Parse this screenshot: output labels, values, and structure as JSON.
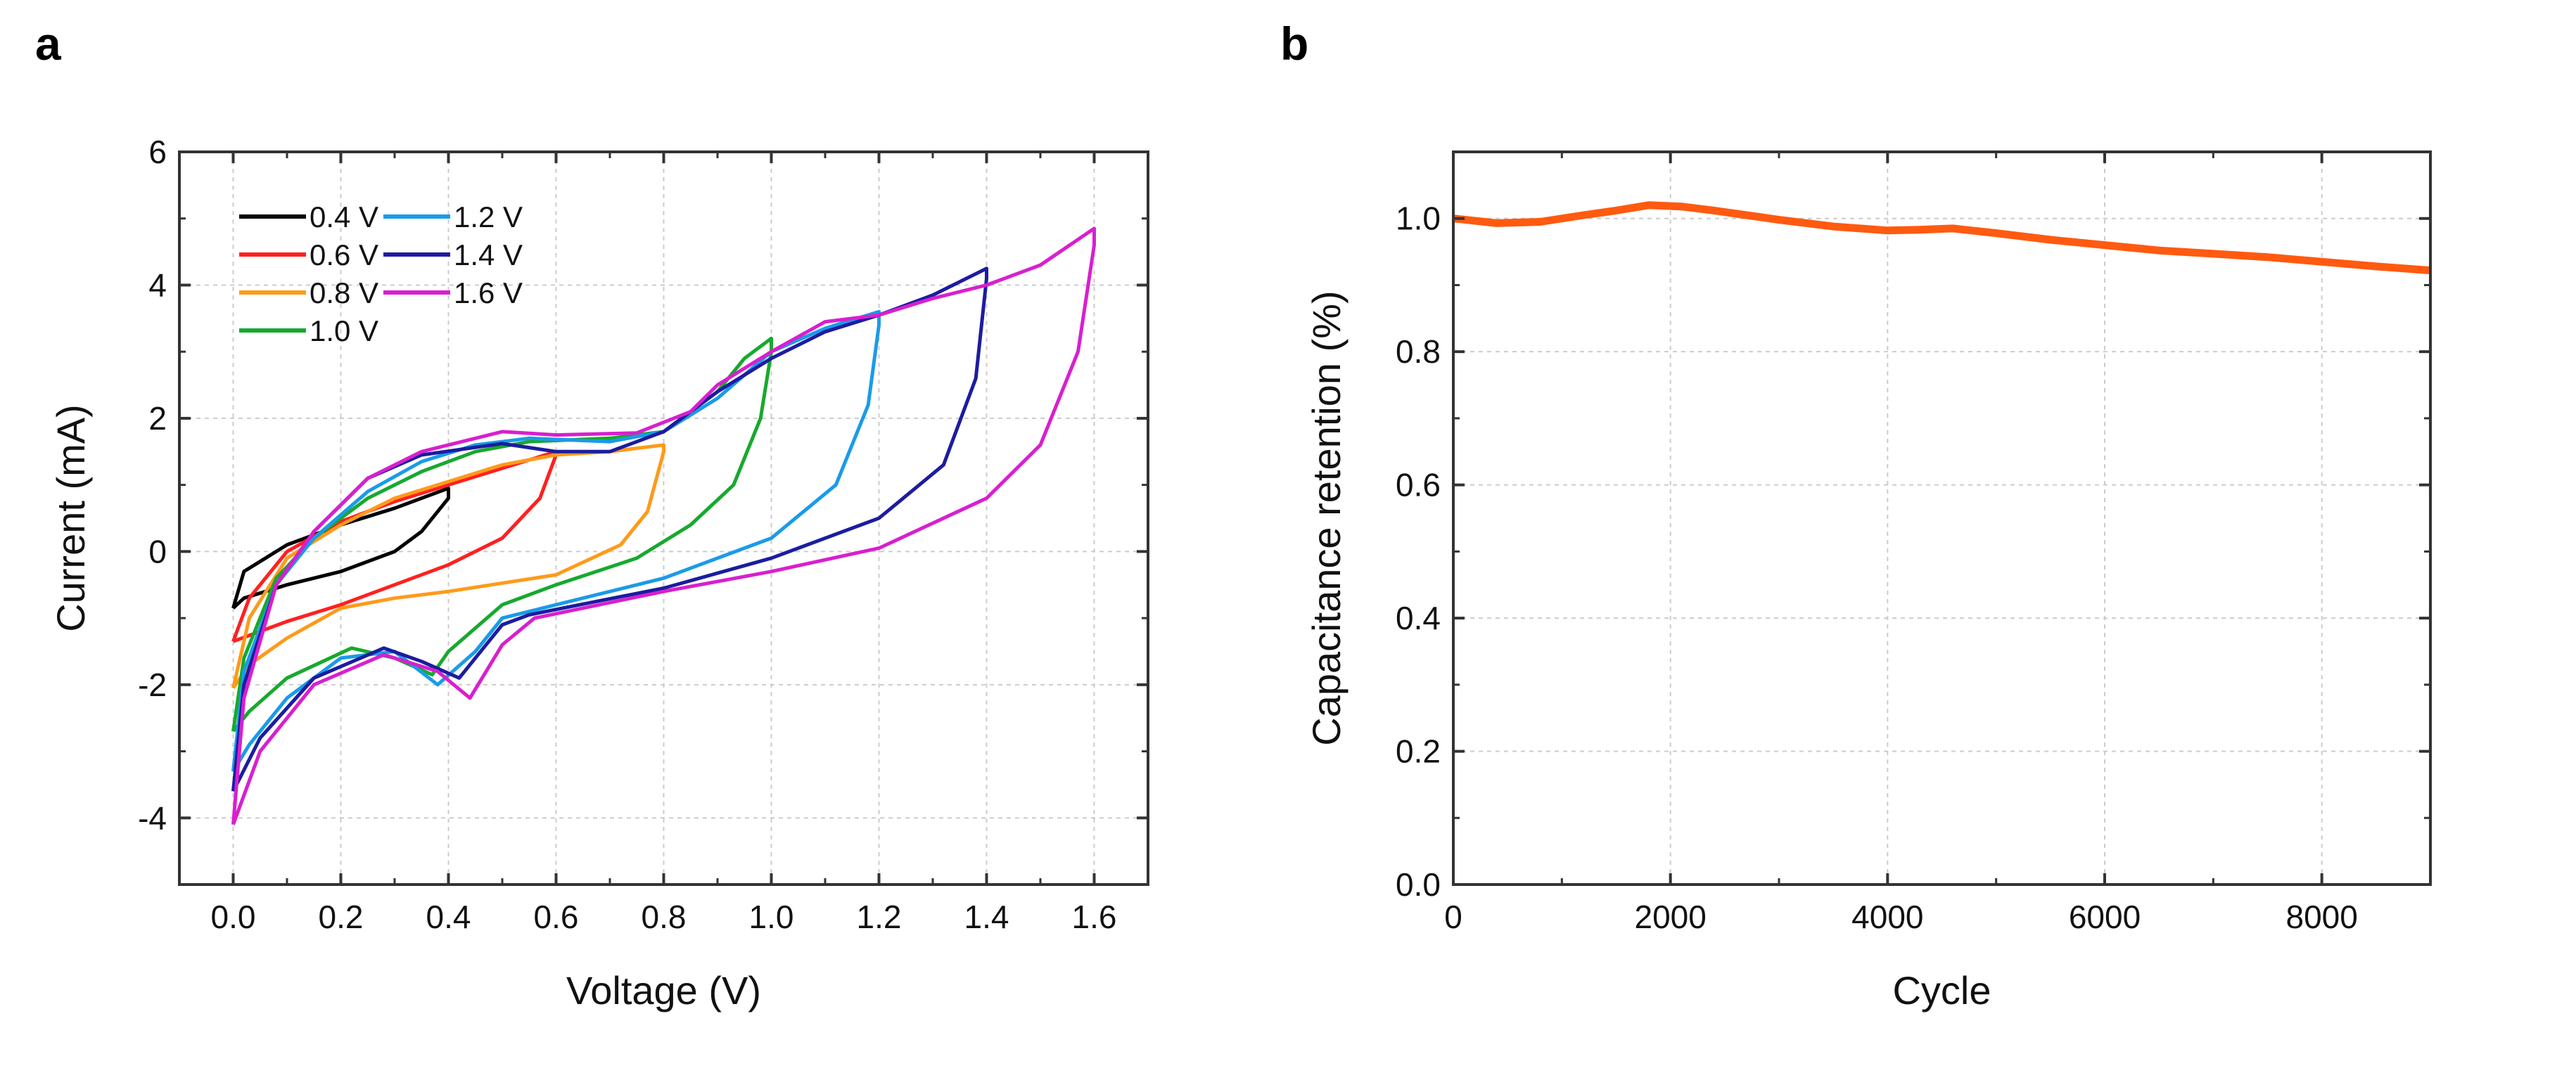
{
  "chart_data": [
    {
      "panel_label": "a",
      "type": "line",
      "xlabel": "Voltage (V)",
      "ylabel": "Current (mA)",
      "xlim": [
        -0.1,
        1.7
      ],
      "ylim": [
        -5,
        6
      ],
      "xticks": [
        0.0,
        0.2,
        0.4,
        0.6,
        0.8,
        1.0,
        1.2,
        1.4,
        1.6
      ],
      "xtick_labels": [
        "0.0",
        "0.2",
        "0.4",
        "0.6",
        "0.8",
        "1.0",
        "1.2",
        "1.4",
        "1.6"
      ],
      "yticks": [
        -4,
        -2,
        0,
        2,
        4,
        6
      ],
      "ytick_labels": [
        "-4",
        "-2",
        "0",
        "2",
        "4",
        "6"
      ],
      "grid": true,
      "legend_position": "top-left",
      "series": [
        {
          "name": "0.4 V",
          "color": "#000000",
          "points": [
            [
              0,
              -0.85
            ],
            [
              0.02,
              -0.3
            ],
            [
              0.1,
              0.1
            ],
            [
              0.2,
              0.4
            ],
            [
              0.3,
              0.65
            ],
            [
              0.4,
              0.95
            ],
            [
              0.4,
              0.8
            ],
            [
              0.35,
              0.3
            ],
            [
              0.3,
              0
            ],
            [
              0.2,
              -0.3
            ],
            [
              0.1,
              -0.5
            ],
            [
              0.02,
              -0.7
            ],
            [
              0,
              -0.85
            ]
          ]
        },
        {
          "name": "0.6 V",
          "color": "#ff2020",
          "points": [
            [
              0,
              -1.35
            ],
            [
              0.03,
              -0.7
            ],
            [
              0.1,
              0
            ],
            [
              0.2,
              0.45
            ],
            [
              0.3,
              0.75
            ],
            [
              0.4,
              1.0
            ],
            [
              0.5,
              1.25
            ],
            [
              0.6,
              1.5
            ],
            [
              0.6,
              1.45
            ],
            [
              0.57,
              0.8
            ],
            [
              0.5,
              0.2
            ],
            [
              0.4,
              -0.2
            ],
            [
              0.3,
              -0.5
            ],
            [
              0.2,
              -0.8
            ],
            [
              0.1,
              -1.05
            ],
            [
              0,
              -1.35
            ]
          ]
        },
        {
          "name": "0.8 V",
          "color": "#ff9a1a",
          "points": [
            [
              0,
              -2.05
            ],
            [
              0.03,
              -1.0
            ],
            [
              0.1,
              -0.1
            ],
            [
              0.2,
              0.4
            ],
            [
              0.3,
              0.8
            ],
            [
              0.4,
              1.05
            ],
            [
              0.5,
              1.3
            ],
            [
              0.6,
              1.45
            ],
            [
              0.7,
              1.5
            ],
            [
              0.8,
              1.6
            ],
            [
              0.8,
              1.5
            ],
            [
              0.77,
              0.6
            ],
            [
              0.72,
              0.1
            ],
            [
              0.6,
              -0.35
            ],
            [
              0.4,
              -0.6
            ],
            [
              0.3,
              -0.7
            ],
            [
              0.2,
              -0.85
            ],
            [
              0.1,
              -1.3
            ],
            [
              0.03,
              -1.7
            ],
            [
              0,
              -2.05
            ]
          ]
        },
        {
          "name": "1.0 V",
          "color": "#17a92e",
          "points": [
            [
              0,
              -2.7
            ],
            [
              0.02,
              -1.6
            ],
            [
              0.08,
              -0.4
            ],
            [
              0.15,
              0.2
            ],
            [
              0.25,
              0.8
            ],
            [
              0.35,
              1.2
            ],
            [
              0.45,
              1.5
            ],
            [
              0.55,
              1.65
            ],
            [
              0.7,
              1.7
            ],
            [
              0.8,
              1.8
            ],
            [
              0.9,
              2.4
            ],
            [
              0.95,
              2.9
            ],
            [
              1.0,
              3.2
            ],
            [
              1.0,
              3.0
            ],
            [
              0.98,
              2.0
            ],
            [
              0.93,
              1.0
            ],
            [
              0.85,
              0.4
            ],
            [
              0.75,
              -0.1
            ],
            [
              0.6,
              -0.5
            ],
            [
              0.5,
              -0.8
            ],
            [
              0.4,
              -1.5
            ],
            [
              0.37,
              -1.85
            ],
            [
              0.3,
              -1.6
            ],
            [
              0.22,
              -1.45
            ],
            [
              0.1,
              -1.9
            ],
            [
              0.03,
              -2.4
            ],
            [
              0,
              -2.7
            ]
          ]
        },
        {
          "name": "1.2 V",
          "color": "#1a9be8",
          "points": [
            [
              0,
              -3.3
            ],
            [
              0.02,
              -1.8
            ],
            [
              0.08,
              -0.5
            ],
            [
              0.15,
              0.2
            ],
            [
              0.25,
              0.9
            ],
            [
              0.35,
              1.35
            ],
            [
              0.45,
              1.6
            ],
            [
              0.55,
              1.7
            ],
            [
              0.7,
              1.65
            ],
            [
              0.8,
              1.8
            ],
            [
              0.9,
              2.3
            ],
            [
              1.0,
              3.0
            ],
            [
              1.1,
              3.35
            ],
            [
              1.2,
              3.6
            ],
            [
              1.2,
              3.4
            ],
            [
              1.18,
              2.2
            ],
            [
              1.12,
              1.0
            ],
            [
              1.0,
              0.2
            ],
            [
              0.8,
              -0.4
            ],
            [
              0.6,
              -0.8
            ],
            [
              0.5,
              -1.0
            ],
            [
              0.45,
              -1.5
            ],
            [
              0.38,
              -2.0
            ],
            [
              0.3,
              -1.5
            ],
            [
              0.2,
              -1.6
            ],
            [
              0.1,
              -2.2
            ],
            [
              0.03,
              -2.9
            ],
            [
              0,
              -3.3
            ]
          ]
        },
        {
          "name": "1.4 V",
          "color": "#1c1ca0",
          "points": [
            [
              0,
              -3.6
            ],
            [
              0.02,
              -2
            ],
            [
              0.08,
              -0.5
            ],
            [
              0.15,
              0.3
            ],
            [
              0.25,
              1.1
            ],
            [
              0.35,
              1.45
            ],
            [
              0.5,
              1.62
            ],
            [
              0.6,
              1.5
            ],
            [
              0.7,
              1.5
            ],
            [
              0.8,
              1.8
            ],
            [
              0.9,
              2.4
            ],
            [
              1.0,
              2.9
            ],
            [
              1.1,
              3.3
            ],
            [
              1.2,
              3.55
            ],
            [
              1.3,
              3.85
            ],
            [
              1.4,
              4.25
            ],
            [
              1.4,
              4.1
            ],
            [
              1.38,
              2.6
            ],
            [
              1.32,
              1.3
            ],
            [
              1.2,
              0.5
            ],
            [
              1.0,
              -0.1
            ],
            [
              0.8,
              -0.55
            ],
            [
              0.55,
              -0.95
            ],
            [
              0.5,
              -1.1
            ],
            [
              0.42,
              -1.9
            ],
            [
              0.35,
              -1.65
            ],
            [
              0.28,
              -1.45
            ],
            [
              0.15,
              -1.9
            ],
            [
              0.05,
              -2.8
            ],
            [
              0,
              -3.6
            ]
          ]
        },
        {
          "name": "1.6 V",
          "color": "#d81fcf",
          "points": [
            [
              0,
              -4.1
            ],
            [
              0.02,
              -2.2
            ],
            [
              0.08,
              -0.5
            ],
            [
              0.15,
              0.3
            ],
            [
              0.25,
              1.1
            ],
            [
              0.35,
              1.5
            ],
            [
              0.5,
              1.8
            ],
            [
              0.6,
              1.75
            ],
            [
              0.75,
              1.78
            ],
            [
              0.85,
              2.1
            ],
            [
              0.9,
              2.5
            ],
            [
              1.0,
              3.0
            ],
            [
              1.1,
              3.45
            ],
            [
              1.2,
              3.55
            ],
            [
              1.3,
              3.8
            ],
            [
              1.4,
              4.0
            ],
            [
              1.5,
              4.3
            ],
            [
              1.6,
              4.85
            ],
            [
              1.6,
              4.6
            ],
            [
              1.57,
              3.0
            ],
            [
              1.5,
              1.6
            ],
            [
              1.4,
              0.8
            ],
            [
              1.2,
              0.05
            ],
            [
              1.0,
              -0.3
            ],
            [
              0.8,
              -0.6
            ],
            [
              0.56,
              -1.0
            ],
            [
              0.5,
              -1.4
            ],
            [
              0.44,
              -2.2
            ],
            [
              0.38,
              -1.8
            ],
            [
              0.28,
              -1.55
            ],
            [
              0.15,
              -2.0
            ],
            [
              0.05,
              -3.0
            ],
            [
              0,
              -4.1
            ]
          ]
        }
      ]
    },
    {
      "panel_label": "b",
      "type": "line",
      "xlabel": "Cycle",
      "ylabel": "Capacitance retention (%)",
      "xlim": [
        0,
        9000
      ],
      "ylim": [
        0,
        1.1
      ],
      "xticks": [
        0,
        2000,
        4000,
        6000,
        8000
      ],
      "xtick_labels": [
        "0",
        "2000",
        "4000",
        "6000",
        "8000"
      ],
      "yticks": [
        0,
        0.2,
        0.4,
        0.6,
        0.8,
        1.0
      ],
      "ytick_labels": [
        "0.0",
        "0.2",
        "0.4",
        "0.6",
        "0.8",
        "1.0"
      ],
      "grid": true,
      "series": [
        {
          "name": "retention",
          "color": "#ff5a10",
          "points": [
            [
              0,
              1.0
            ],
            [
              400,
              0.993
            ],
            [
              800,
              0.995
            ],
            [
              1200,
              1.005
            ],
            [
              1500,
              1.012
            ],
            [
              1800,
              1.02
            ],
            [
              2100,
              1.018
            ],
            [
              2400,
              1.012
            ],
            [
              2700,
              1.005
            ],
            [
              3000,
              0.998
            ],
            [
              3500,
              0.988
            ],
            [
              4000,
              0.982
            ],
            [
              4300,
              0.983
            ],
            [
              4600,
              0.985
            ],
            [
              5000,
              0.978
            ],
            [
              5500,
              0.968
            ],
            [
              6000,
              0.96
            ],
            [
              6500,
              0.952
            ],
            [
              7000,
              0.947
            ],
            [
              7500,
              0.942
            ],
            [
              8000,
              0.935
            ],
            [
              8500,
              0.928
            ],
            [
              9000,
              0.922
            ]
          ]
        }
      ]
    }
  ]
}
